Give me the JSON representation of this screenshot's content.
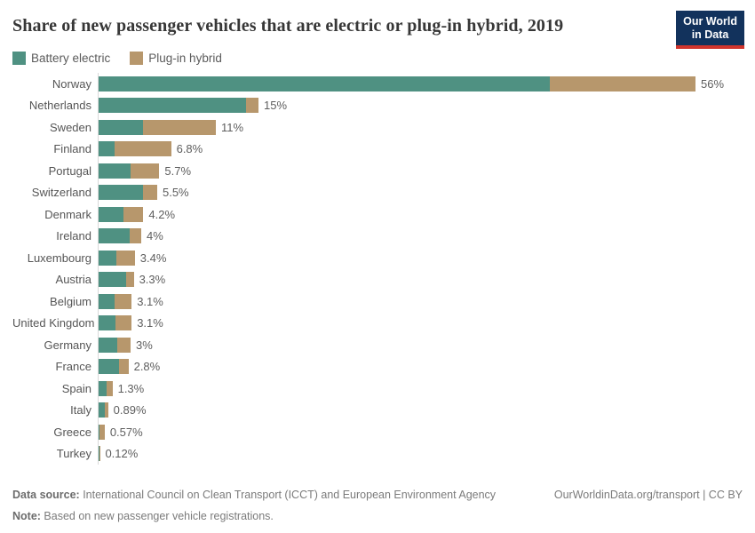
{
  "header": {
    "title": "Share of new passenger vehicles that are electric or plug-in hybrid, 2019",
    "logo": {
      "line1": "Our World",
      "line2": "in Data",
      "bg_color": "#12325C",
      "stripe_color": "#D0342C"
    }
  },
  "legend": [
    {
      "label": "Battery electric",
      "color": "#4F9182"
    },
    {
      "label": "Plug-in hybrid",
      "color": "#B7976C"
    }
  ],
  "chart_data": {
    "type": "bar",
    "orientation": "horizontal",
    "stacked": true,
    "grid": false,
    "legend_position": "top-left",
    "xlim": [
      0,
      56
    ],
    "categories": [
      "Norway",
      "Netherlands",
      "Sweden",
      "Finland",
      "Portugal",
      "Switzerland",
      "Denmark",
      "Ireland",
      "Luxembourg",
      "Austria",
      "Belgium",
      "United Kingdom",
      "Germany",
      "France",
      "Spain",
      "Italy",
      "Greece",
      "Turkey"
    ],
    "series": [
      {
        "name": "Battery electric",
        "color": "#4F9182",
        "values": [
          42.3,
          13.8,
          4.2,
          1.5,
          3.0,
          4.2,
          2.3,
          2.9,
          1.7,
          2.6,
          1.5,
          1.6,
          1.75,
          1.9,
          0.75,
          0.55,
          0.1,
          0.06
        ]
      },
      {
        "name": "Plug-in hybrid",
        "color": "#B7976C",
        "values": [
          13.7,
          1.2,
          6.8,
          5.3,
          2.7,
          1.3,
          1.9,
          1.1,
          1.7,
          0.7,
          1.6,
          1.5,
          1.25,
          0.9,
          0.55,
          0.34,
          0.47,
          0.06
        ]
      }
    ],
    "total_labels": [
      "56%",
      "15%",
      "11%",
      "6.8%",
      "5.7%",
      "5.5%",
      "4.2%",
      "4%",
      "3.4%",
      "3.3%",
      "3.1%",
      "3.1%",
      "3%",
      "2.8%",
      "1.3%",
      "0.89%",
      "0.57%",
      "0.12%"
    ],
    "title": "Share of new passenger vehicles that are electric or plug-in hybrid, 2019",
    "xlabel": "",
    "ylabel": ""
  },
  "footer": {
    "source_label": "Data source:",
    "source_text": " International Council on Clean Transport (ICCT) and European Environment Agency",
    "note_label": "Note:",
    "note_text": " Based on new passenger vehicle registrations.",
    "link": "OurWorldinData.org/transport | CC BY"
  }
}
